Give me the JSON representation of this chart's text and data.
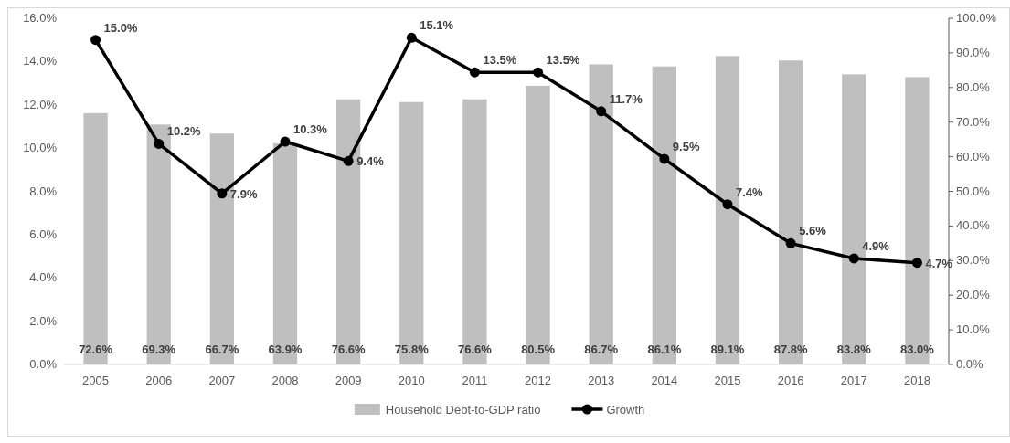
{
  "chart_data": {
    "type": "bar",
    "categories": [
      "2005",
      "2006",
      "2007",
      "2008",
      "2009",
      "2010",
      "2011",
      "2012",
      "2013",
      "2014",
      "2015",
      "2016",
      "2017",
      "2018"
    ],
    "series": [
      {
        "name": "Household Debt-to-GDP ratio",
        "axis": "y2",
        "color": "#bfbfbf",
        "values": [
          72.6,
          69.3,
          66.7,
          63.9,
          76.6,
          75.8,
          76.6,
          80.5,
          86.7,
          86.1,
          89.1,
          87.8,
          83.8,
          83.0
        ],
        "value_labels": [
          "72.6%",
          "69.3%",
          "66.7%",
          "63.9%",
          "76.6%",
          "75.8%",
          "76.6%",
          "80.5%",
          "86.7%",
          "86.1%",
          "89.1%",
          "87.8%",
          "83.8%",
          "83.0%"
        ]
      },
      {
        "name": "Growth",
        "type": "line",
        "axis": "y",
        "color": "#000000",
        "values": [
          15.0,
          10.2,
          7.9,
          10.3,
          9.4,
          15.1,
          13.5,
          13.5,
          11.7,
          9.5,
          7.4,
          5.6,
          4.9,
          4.7
        ],
        "value_labels": [
          "15.0%",
          "10.2%",
          "7.9%",
          "10.3%",
          "9.4%",
          "15.1%",
          "13.5%",
          "13.5%",
          "11.7%",
          "9.5%",
          "7.4%",
          "5.6%",
          "4.9%",
          "4.7%"
        ]
      }
    ],
    "ylim": [
      0,
      16
    ],
    "yticks": [
      {
        "value": 0,
        "label": "0.0%"
      },
      {
        "value": 2,
        "label": "2.0%"
      },
      {
        "value": 4,
        "label": "4.0%"
      },
      {
        "value": 6,
        "label": "6.0%"
      },
      {
        "value": 8,
        "label": "8.0%"
      },
      {
        "value": 10,
        "label": "10.0%"
      },
      {
        "value": 12,
        "label": "12.0%"
      },
      {
        "value": 14,
        "label": "14.0%"
      },
      {
        "value": 16,
        "label": "16.0%"
      }
    ],
    "y2lim": [
      0,
      100
    ],
    "y2ticks": [
      {
        "value": 0,
        "label": "0.0%"
      },
      {
        "value": 10,
        "label": "10.0%"
      },
      {
        "value": 20,
        "label": "20.0%"
      },
      {
        "value": 30,
        "label": "30.0%"
      },
      {
        "value": 40,
        "label": "40.0%"
      },
      {
        "value": 50,
        "label": "50.0%"
      },
      {
        "value": 60,
        "label": "60.0%"
      },
      {
        "value": 70,
        "label": "70.0%"
      },
      {
        "value": 80,
        "label": "80.0%"
      },
      {
        "value": 90,
        "label": "90.0%"
      },
      {
        "value": 100,
        "label": "100.0%"
      }
    ],
    "legend": "bottom",
    "marker": "circle",
    "line_style": "solid",
    "grid": false
  }
}
